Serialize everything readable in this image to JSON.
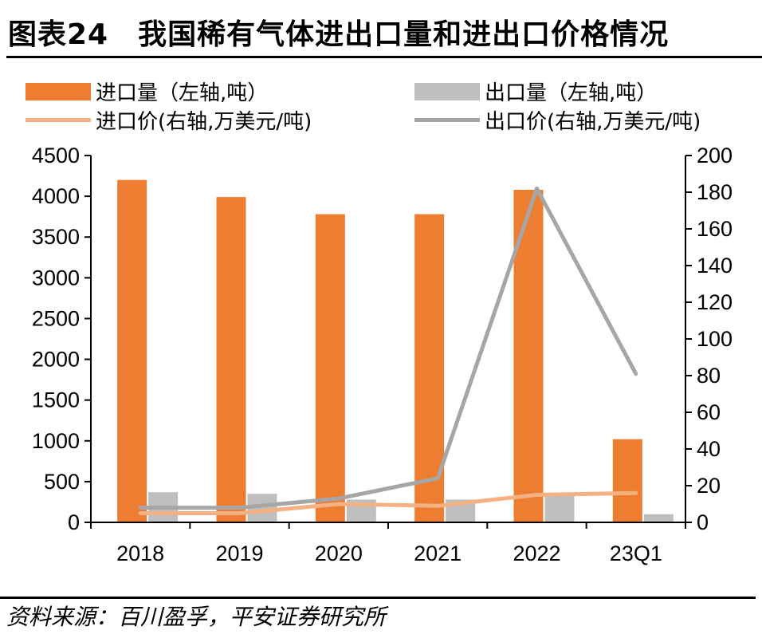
{
  "header": {
    "title": "图表24　我国稀有气体进出口量和进出口价格情况"
  },
  "footer": {
    "source": "资料来源：百川盈孚，平安证券研究所"
  },
  "colors": {
    "import_volume": "#ED7D31",
    "export_volume": "#BFBFBF",
    "import_price": "#F4B183",
    "export_price": "#A6A6A6"
  },
  "chart_data": {
    "type": "bar",
    "categories": [
      "2018",
      "2019",
      "2020",
      "2021",
      "2022",
      "23Q1"
    ],
    "series": [
      {
        "name": "进口量（左轴,吨）",
        "kind": "bar",
        "axis": "left",
        "values": [
          4200,
          3990,
          3780,
          3780,
          4080,
          1020
        ]
      },
      {
        "name": "出口量（左轴,吨）",
        "kind": "bar",
        "axis": "left",
        "values": [
          370,
          350,
          280,
          280,
          330,
          100
        ]
      },
      {
        "name": "进口价(右轴,万美元/吨)",
        "kind": "line",
        "axis": "right",
        "values": [
          5,
          5,
          10,
          9,
          15,
          16
        ]
      },
      {
        "name": "出口价(右轴,万美元/吨)",
        "kind": "line",
        "axis": "right",
        "values": [
          8,
          8,
          13,
          24,
          182,
          81
        ]
      }
    ],
    "y_left": {
      "min": 0,
      "max": 4500,
      "ticks": [
        "0",
        "500",
        "1000",
        "1500",
        "2000",
        "2500",
        "3000",
        "3500",
        "4000",
        "4500"
      ]
    },
    "y_right": {
      "min": 0,
      "max": 200,
      "ticks": [
        "0",
        "20",
        "40",
        "60",
        "80",
        "100",
        "120",
        "140",
        "160",
        "180",
        "200"
      ]
    },
    "legend_position": "top",
    "grid": false
  }
}
